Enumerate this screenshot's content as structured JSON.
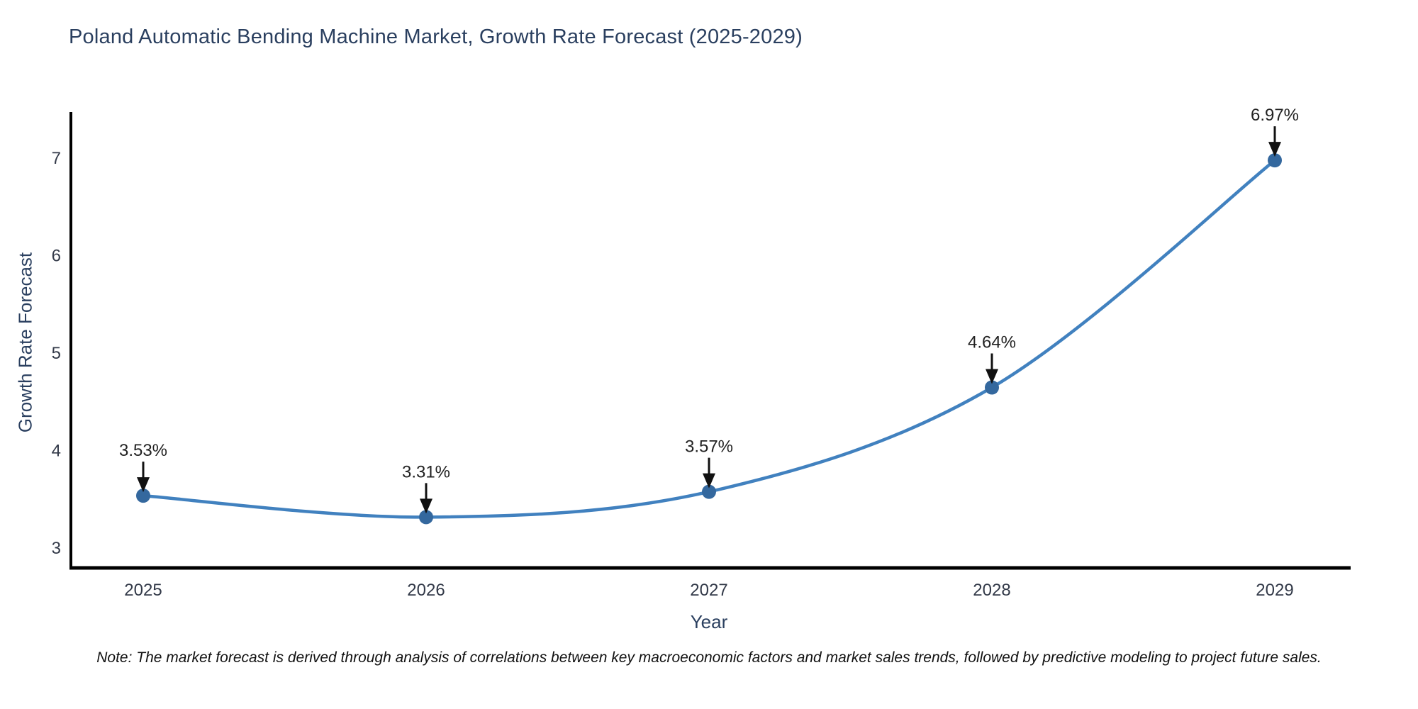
{
  "title": "Poland Automatic Bending Machine Market, Growth Rate Forecast (2025-2029)",
  "note": "Note: The market forecast is derived through analysis of correlations between key macroeconomic factors and market sales trends, followed by predictive modeling to project future sales.",
  "chart_data": {
    "type": "line",
    "title": "Poland Automatic Bending Machine Market, Growth Rate Forecast (2025-2029)",
    "categories": [
      "2025",
      "2026",
      "2027",
      "2028",
      "2029"
    ],
    "values": [
      3.53,
      3.31,
      3.57,
      4.64,
      6.97
    ],
    "point_labels": [
      "3.53%",
      "3.31%",
      "3.57%",
      "4.64%",
      "6.97%"
    ],
    "xlabel": "Year",
    "ylabel": "Growth Rate Forecast",
    "yticks": [
      3,
      4,
      5,
      6,
      7
    ],
    "ylim": [
      2.77,
      7.47
    ],
    "grid": false,
    "legend": "none",
    "line_shape": "spline",
    "colors": {
      "line": "#4181bf",
      "marker": "#34689e",
      "annotation_arrow": "#111111",
      "annotation_text": "#222222",
      "axis_line": "#000000",
      "tick_text": "#333a49",
      "title_text": "#2a3f5f",
      "note_text": "#111111",
      "background": "#ffffff"
    }
  }
}
